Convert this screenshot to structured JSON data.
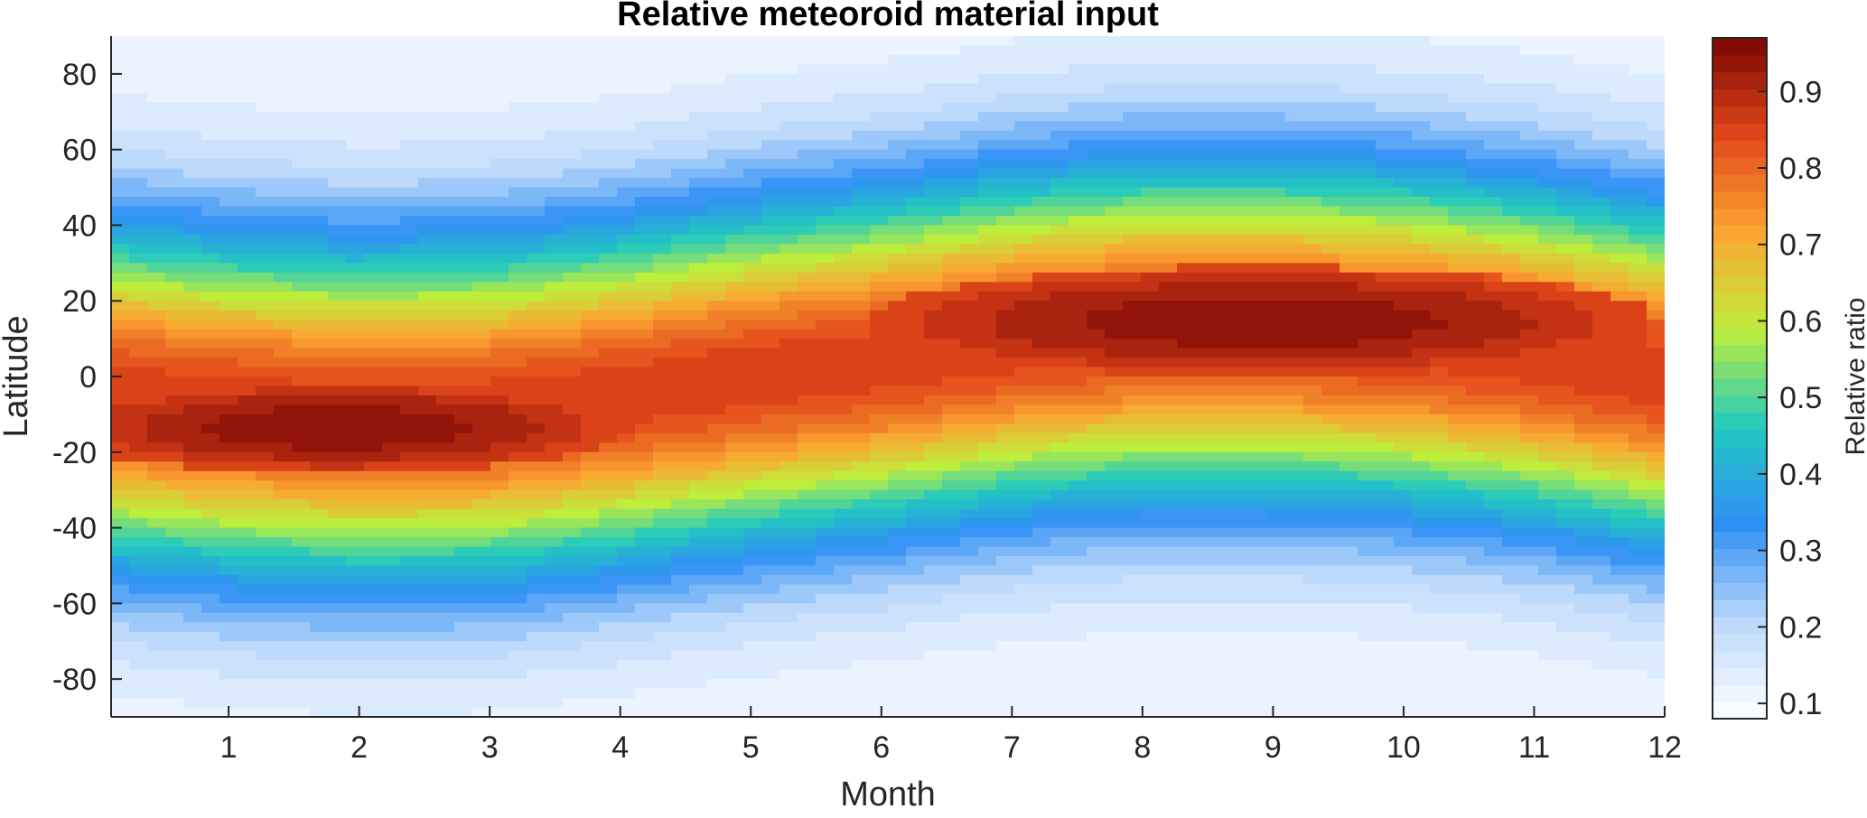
{
  "chart_data": {
    "type": "heatmap",
    "style": "filled-contour",
    "title": "Relative meteoroid material input",
    "xlabel": "Month",
    "ylabel": "Latitude",
    "xlim": [
      0.1,
      12
    ],
    "ylim": [
      -90,
      90
    ],
    "xticks": [
      1,
      2,
      3,
      4,
      5,
      6,
      7,
      8,
      9,
      10,
      11,
      12
    ],
    "yticks": [
      80,
      60,
      40,
      20,
      0,
      -20,
      -40,
      -60,
      -80
    ],
    "grid": false,
    "colorbar": {
      "label": "Relative ratio",
      "range": [
        0.08,
        0.97
      ],
      "ticks": [
        0.1,
        0.2,
        0.3,
        0.4,
        0.5,
        0.6,
        0.7,
        0.8,
        0.9
      ],
      "colormap": "turbo",
      "stops": [
        "#ffffff",
        "#bcd9fb",
        "#2f8ff5",
        "#22c9c0",
        "#bdee3c",
        "#fba631",
        "#e2471a",
        "#7a0403"
      ]
    },
    "description_points": {
      "band_center_latitude_by_month": {
        "x": [
          0.1,
          1,
          2,
          3,
          4,
          5,
          6,
          7,
          8,
          9,
          10,
          11,
          12
        ],
        "y": [
          -5,
          -8,
          -10,
          -9,
          -5,
          0,
          4,
          9,
          12,
          12,
          10,
          6,
          0
        ]
      },
      "band_halfwidth_deg": 38,
      "southern_maximum": {
        "x": [
          0.1,
          3.6
        ],
        "y": [
          -23,
          -4
        ],
        "value": 0.95
      },
      "northern_maximum": {
        "x": [
          6.5,
          11.3
        ],
        "y": [
          3,
          26
        ],
        "value": 0.95
      },
      "polar_minimum_value": 0.1
    }
  }
}
